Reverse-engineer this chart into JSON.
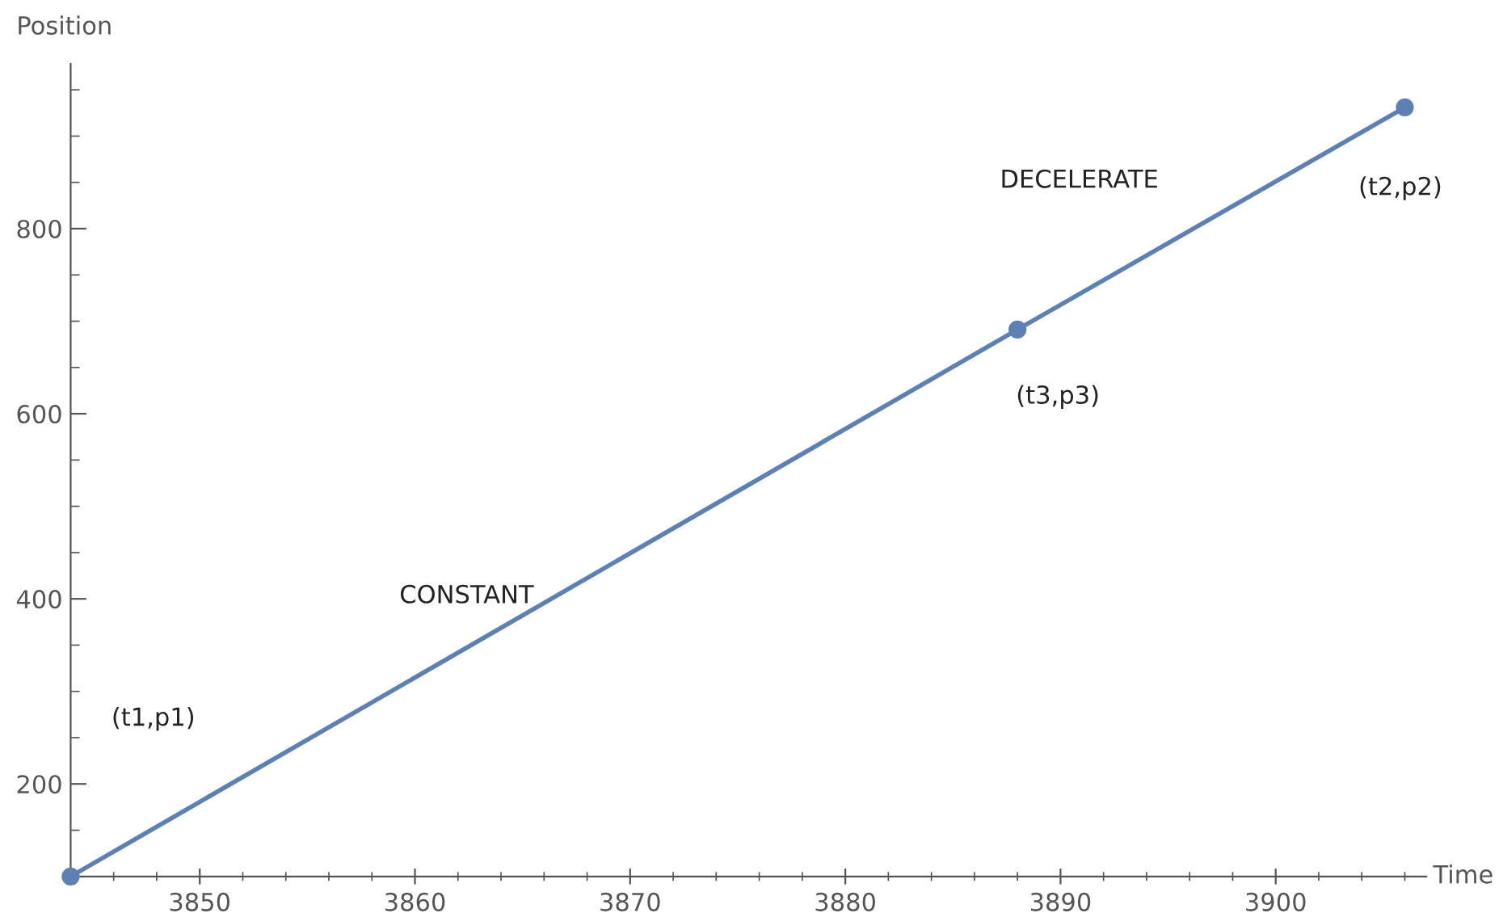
{
  "chart_data": {
    "type": "line",
    "xlabel": "Time",
    "ylabel": "Position",
    "x": [
      3844,
      3888,
      3906
    ],
    "series": [
      {
        "color": "#5e81b5",
        "values": [
          100,
          691,
          931
        ]
      }
    ],
    "marker": "circle",
    "line_style": "solid",
    "grid": false,
    "legend": false,
    "xlim": [
      3844,
      3907
    ],
    "ylim": [
      100,
      978
    ],
    "xticks": [
      {
        "value": 3846,
        "label": null
      },
      {
        "value": 3848,
        "label": null
      },
      3850,
      {
        "value": 3852,
        "label": null
      },
      {
        "value": 3854,
        "label": null
      },
      {
        "value": 3856,
        "label": null
      },
      {
        "value": 3858,
        "label": null
      },
      3860,
      {
        "value": 3862,
        "label": null
      },
      {
        "value": 3864,
        "label": null
      },
      {
        "value": 3866,
        "label": null
      },
      {
        "value": 3868,
        "label": null
      },
      3870,
      {
        "value": 3872,
        "label": null
      },
      {
        "value": 3874,
        "label": null
      },
      {
        "value": 3876,
        "label": null
      },
      {
        "value": 3878,
        "label": null
      },
      3880,
      {
        "value": 3882,
        "label": null
      },
      {
        "value": 3884,
        "label": null
      },
      {
        "value": 3886,
        "label": null
      },
      {
        "value": 3888,
        "label": null
      },
      3890,
      {
        "value": 3892,
        "label": null
      },
      {
        "value": 3894,
        "label": null
      },
      {
        "value": 3896,
        "label": null
      },
      {
        "value": 3898,
        "label": null
      },
      3900,
      {
        "value": 3902,
        "label": null
      },
      {
        "value": 3904,
        "label": null
      },
      {
        "value": 3906,
        "label": null
      }
    ],
    "yticks": [
      {
        "value": 150,
        "label": null
      },
      200,
      {
        "value": 250,
        "label": null
      },
      {
        "value": 300,
        "label": null
      },
      {
        "value": 350,
        "label": null
      },
      400,
      {
        "value": 450,
        "label": null
      },
      {
        "value": 500,
        "label": null
      },
      {
        "value": 550,
        "label": null
      },
      600,
      {
        "value": 650,
        "label": null
      },
      {
        "value": 700,
        "label": null
      },
      {
        "value": 750,
        "label": null
      },
      800,
      {
        "value": 850,
        "label": null
      },
      {
        "value": 900,
        "label": null
      },
      {
        "value": 950,
        "label": null
      }
    ],
    "annotations": [
      "(t1,p1)",
      {
        "text": "CONSTANT",
        "x": 3862.4,
        "y": 347
      },
      {
        "text": "(t3,p3)",
        "x": 3888,
        "y": 691
      },
      "DECELERATE",
      {
        "text": "(t2,p2)",
        "x": 3906,
        "y": 931
      }
    ]
  }
}
